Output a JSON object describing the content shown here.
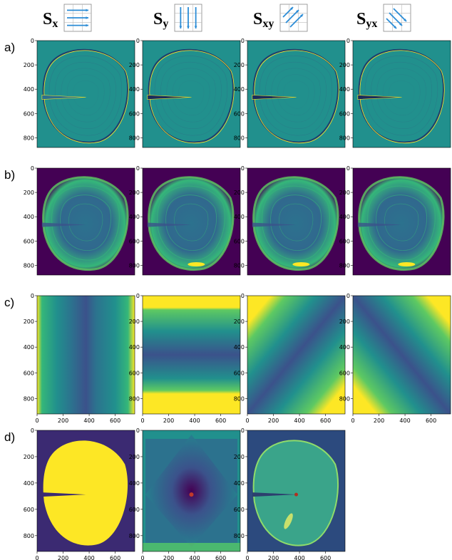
{
  "headers": [
    {
      "main": "S",
      "sub": "x",
      "icon": "horizontal-arrows-icon"
    },
    {
      "main": "S",
      "sub": "y",
      "icon": "vertical-arrows-icon"
    },
    {
      "main": "S",
      "sub": "xy",
      "icon": "diagonal-up-arrows-icon"
    },
    {
      "main": "S",
      "sub": "yx",
      "icon": "diagonal-down-arrows-icon"
    }
  ],
  "row_labels": [
    "a)",
    "b)",
    "c)",
    "d)"
  ],
  "y_ticks": [
    "0",
    "200",
    "400",
    "600",
    "800"
  ],
  "x_ticks": [
    "0",
    "200",
    "400",
    "600"
  ],
  "colors": {
    "viridis_dark": "#440154",
    "viridis_blue": "#3b528b",
    "viridis_teal": "#21908d",
    "viridis_green": "#5ec962",
    "viridis_yellow": "#fde725"
  }
}
